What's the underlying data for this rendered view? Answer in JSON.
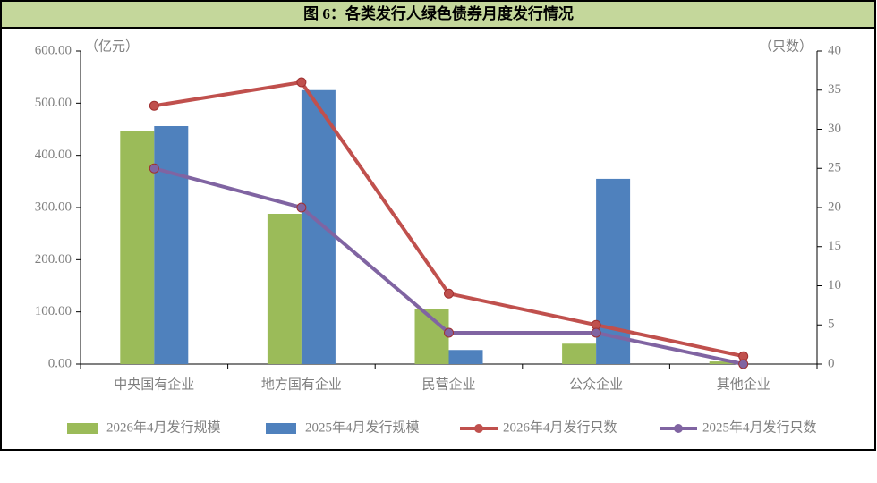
{
  "chart_data": {
    "type": "bar-line",
    "title": "图 6：各类发行人绿色债券月度发行情况",
    "y_label": "（亿元）",
    "y2_label": "（只数）",
    "categories": [
      "中央国有企业",
      "地方国有企业",
      "民营企业",
      "公众企业",
      "其他企业"
    ],
    "series": [
      {
        "name": "2026年4月发行规模",
        "color": "#9bbb59",
        "kind": "bar",
        "values": [
          447,
          288,
          105,
          39,
          5
        ]
      },
      {
        "name": "2025年4月发行规模",
        "color": "#4f81bd",
        "kind": "bar",
        "values": [
          456,
          525,
          27,
          355,
          0
        ]
      },
      {
        "name": "2026年4月发行只数",
        "color": "#c0504d",
        "kind": "line",
        "axis": "y2",
        "values": [
          33,
          36,
          9,
          5,
          1
        ]
      },
      {
        "name": "2025年4月发行只数",
        "color": "#8064a2",
        "kind": "line",
        "axis": "y2",
        "values": [
          25,
          20,
          4,
          4,
          0
        ]
      }
    ],
    "ylim": [
      0,
      600
    ],
    "yticks": [
      {
        "value": 0,
        "label": "0.00"
      },
      {
        "value": 100,
        "label": "100.00"
      },
      {
        "value": 200,
        "label": "200.00"
      },
      {
        "value": 300,
        "label": "300.00"
      },
      {
        "value": 400,
        "label": "400.00"
      },
      {
        "value": 500,
        "label": "500.00"
      },
      {
        "value": 600,
        "label": "600.00"
      }
    ],
    "y2lim": [
      0,
      40
    ],
    "y2ticks": [
      0,
      5,
      10,
      15,
      20,
      25,
      30,
      35,
      40
    ],
    "legend": "bottom"
  }
}
